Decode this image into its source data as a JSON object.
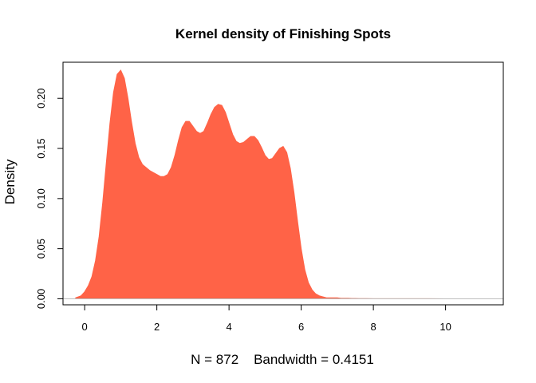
{
  "chart_data": {
    "type": "area",
    "title": "Kernel density of Finishing Spots",
    "xlabel": "N = 872    Bandwidth = 0.4151",
    "ylabel": "Density",
    "xlim": [
      -0.6,
      11.6
    ],
    "ylim": [
      -0.006,
      0.236
    ],
    "x_ticks": [
      0,
      2,
      4,
      6,
      8,
      10
    ],
    "x_tick_labels": [
      "0",
      "2",
      "4",
      "6",
      "8",
      "10"
    ],
    "y_ticks": [
      0.0,
      0.05,
      0.1,
      0.15,
      0.2
    ],
    "y_tick_labels": [
      "0.00",
      "0.05",
      "0.10",
      "0.15",
      "0.20"
    ],
    "fill_color": "#FF6347",
    "baseline_color": "#BEBEBE",
    "grid": false,
    "legend": "none",
    "series": [
      {
        "x": [
          -0.25,
          -0.1,
          0.0,
          0.1,
          0.2,
          0.3,
          0.4,
          0.5,
          0.6,
          0.7,
          0.8,
          0.9,
          1.0,
          1.1,
          1.2,
          1.3,
          1.4,
          1.5,
          1.6,
          1.7,
          1.8,
          1.9,
          2.0,
          2.1,
          2.2,
          2.3,
          2.4,
          2.5,
          2.6,
          2.7,
          2.8,
          2.9,
          3.0,
          3.1,
          3.2,
          3.3,
          3.4,
          3.5,
          3.6,
          3.7,
          3.8,
          3.9,
          4.0,
          4.1,
          4.2,
          4.3,
          4.4,
          4.5,
          4.6,
          4.7,
          4.8,
          4.9,
          5.0,
          5.1,
          5.2,
          5.3,
          5.4,
          5.5,
          5.6,
          5.7,
          5.8,
          5.9,
          6.0,
          6.1,
          6.2,
          6.3,
          6.4,
          6.5,
          6.6,
          6.7,
          6.8,
          6.9,
          7.0,
          7.1,
          7.2,
          7.3,
          7.4,
          7.5,
          7.6,
          7.7,
          7.8,
          8.0,
          8.2,
          8.5,
          9.0,
          9.5,
          10.0,
          10.5,
          11.0,
          11.5
        ],
        "y": [
          0.001,
          0.003,
          0.007,
          0.013,
          0.022,
          0.038,
          0.062,
          0.096,
          0.136,
          0.175,
          0.206,
          0.224,
          0.228,
          0.22,
          0.2,
          0.176,
          0.155,
          0.141,
          0.134,
          0.131,
          0.128,
          0.126,
          0.124,
          0.122,
          0.122,
          0.124,
          0.131,
          0.143,
          0.158,
          0.171,
          0.177,
          0.177,
          0.172,
          0.167,
          0.165,
          0.167,
          0.175,
          0.184,
          0.191,
          0.194,
          0.193,
          0.186,
          0.175,
          0.164,
          0.157,
          0.155,
          0.156,
          0.159,
          0.162,
          0.162,
          0.158,
          0.151,
          0.143,
          0.139,
          0.14,
          0.145,
          0.15,
          0.152,
          0.146,
          0.13,
          0.106,
          0.077,
          0.05,
          0.029,
          0.016,
          0.009,
          0.005,
          0.003,
          0.002,
          0.001,
          0.001,
          0.001,
          0.001,
          0.0005,
          0.0005,
          0.0005,
          0.0003,
          0.0003,
          0.0002,
          0.0002,
          0.0002,
          0.0001,
          0.0001,
          0.0001,
          0.0001,
          0.0001,
          0.0,
          0.0,
          0.0,
          0.0
        ]
      }
    ]
  }
}
